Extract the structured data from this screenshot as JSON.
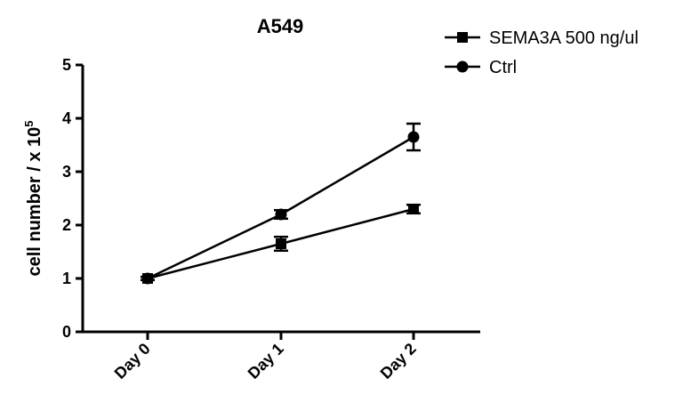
{
  "chart_data": {
    "type": "line",
    "title": "A549",
    "ylabel_main": "cell number / x 10",
    "ylabel_exp": "5",
    "categories": [
      "Day 0",
      "Day 1",
      "Day 2"
    ],
    "ylim": [
      0,
      5
    ],
    "yticks": [
      "0",
      "1",
      "2",
      "3",
      "4",
      "5"
    ],
    "grid": false,
    "legend_position": "top-right",
    "series": [
      {
        "name": "SEMA3A 500 ng/ul",
        "marker": "square",
        "values": [
          1.0,
          1.65,
          2.3
        ],
        "errors": [
          0.03,
          0.13,
          0.08
        ]
      },
      {
        "name": "Ctrl",
        "marker": "circle",
        "values": [
          1.0,
          2.2,
          3.65
        ],
        "errors": [
          0.03,
          0.08,
          0.25
        ]
      }
    ],
    "color": "#000000"
  }
}
